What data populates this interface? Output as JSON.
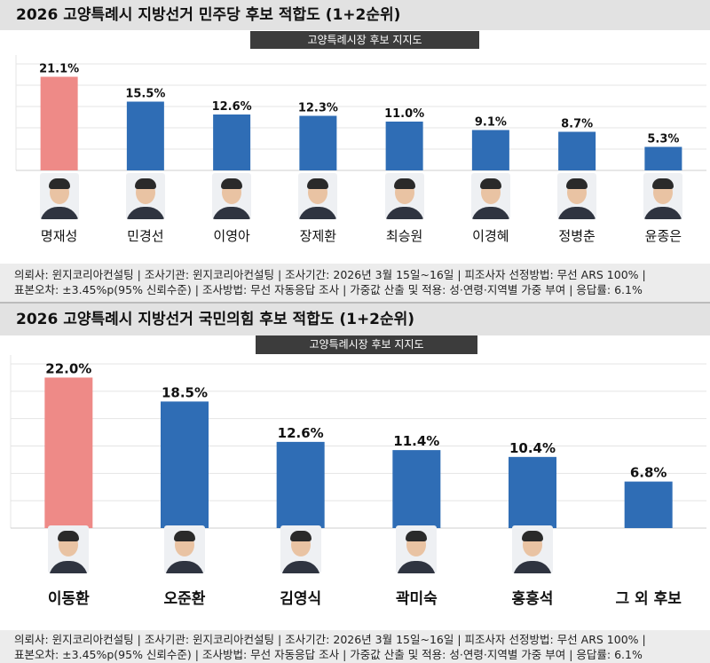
{
  "panels": [
    {
      "title": "2026 고양특례시 지방선거 민주당 후보 적합도 (1+2순위)",
      "subtitle": "고양특례시장 후보 지지도",
      "footer_line1": "의뢰사: 윈지코리아컨설팅 | 조사기관: 윈지코리아컨설팅 | 조사기간: 2026년 3월 15일~16일 | 피조사자 선정방법: 무선 ARS 100% |",
      "footer_line2": "표본오차: ±3.45%p(95% 신뢰수준) | 조사방법: 무선 자동응답 조사 | 가중값 산출 및 적용: 성·연령·지역별 가중 부여 | 응답률: 6.1%",
      "icons": [
        "person-photo"
      ]
    },
    {
      "title": "2026 고양특례시 지방선거 국민의힘 후보 적합도 (1+2순위)",
      "subtitle": "고양특례시장 후보 지지도",
      "footer_line1": "의뢰사: 윈지코리아컨설팅 | 조사기관: 윈지코리아컨설팅 | 조사기간: 2026년 3월 15일~16일 | 피조사자 선정방법: 무선 ARS 100% |",
      "footer_line2": "표본오차: ±3.45%p(95% 신뢰수준) | 조사방법: 무선 자동응답 조사 | 가중값 산출 및 적용: 성·연령·지역별 가중 부여 | 응답률: 6.1%",
      "icons": [
        "person-photo"
      ]
    }
  ],
  "chart_data": [
    {
      "type": "bar",
      "title": "2026 고양특례시 지방선거 민주당 후보 적합도 (1+2순위)",
      "subtitle": "고양특례시장 후보 지지도",
      "categories": [
        "명재성",
        "민경선",
        "이영아",
        "장제환",
        "최승원",
        "이경혜",
        "정병춘",
        "윤종은"
      ],
      "values": [
        21.1,
        15.5,
        12.6,
        12.3,
        11.0,
        9.1,
        8.7,
        5.3
      ],
      "value_labels": [
        "21.1%",
        "15.5%",
        "12.6%",
        "12.3%",
        "11.0%",
        "9.1%",
        "8.7%",
        "5.3%"
      ],
      "unit": "%",
      "ylim": [
        0,
        24
      ],
      "grid": true,
      "colors": {
        "highlight": "#ee8a87",
        "default": "#2f6db5"
      },
      "highlight_index": 0
    },
    {
      "type": "bar",
      "title": "2026 고양특례시 지방선거 국민의힘 후보 적합도 (1+2순위)",
      "subtitle": "고양특례시장 후보 지지도",
      "categories": [
        "이동환",
        "오준환",
        "김영식",
        "곽미숙",
        "홍흥석",
        "그 외 후보"
      ],
      "values": [
        22.0,
        18.5,
        12.6,
        11.4,
        10.4,
        6.8
      ],
      "value_labels": [
        "22.0%",
        "18.5%",
        "12.6%",
        "11.4%",
        "10.4%",
        "6.8%"
      ],
      "unit": "%",
      "ylim": [
        0,
        24
      ],
      "grid": true,
      "colors": {
        "highlight": "#ee8a87",
        "default": "#2f6db5"
      },
      "highlight_index": 0
    }
  ]
}
